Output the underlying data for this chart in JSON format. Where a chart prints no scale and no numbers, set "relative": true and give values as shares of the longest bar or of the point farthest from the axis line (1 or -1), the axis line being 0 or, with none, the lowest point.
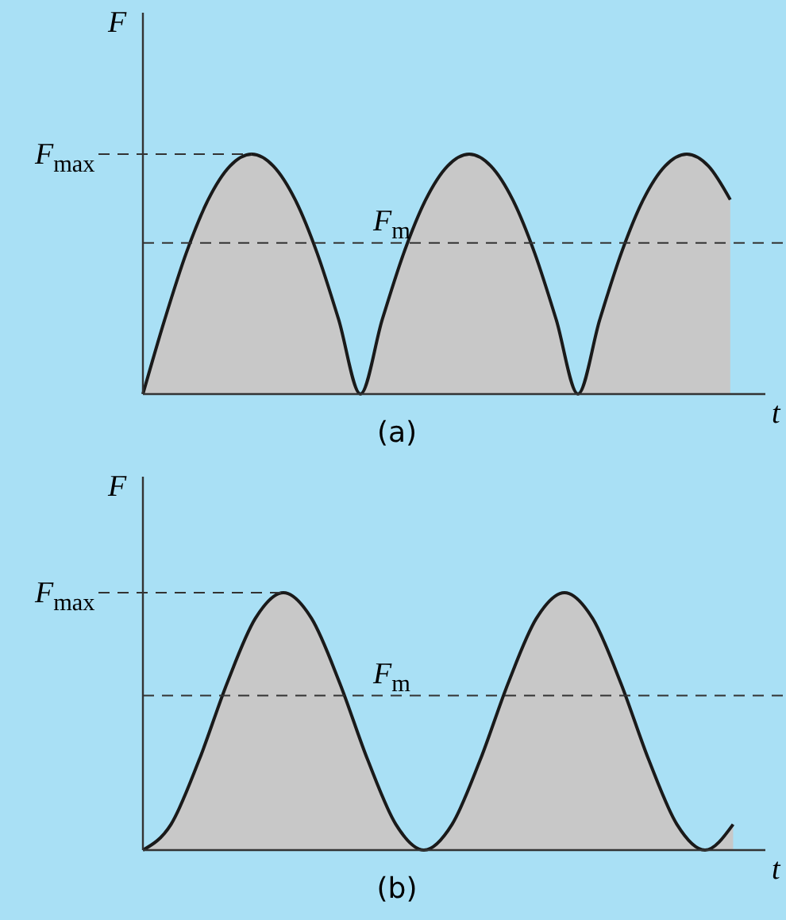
{
  "chart_data": [
    {
      "type": "area",
      "title": "(a)",
      "xlabel": "t",
      "ylabel": "F",
      "relative": true,
      "categories": [
        null,
        null,
        null,
        null,
        null,
        null,
        null,
        null,
        null,
        null,
        null,
        null,
        null,
        null,
        null,
        null,
        null,
        null,
        null,
        null,
        null,
        null,
        null,
        null,
        null,
        null,
        null,
        null
      ],
      "series": [
        {
          "color": "#c8c8c8",
          "values": [
            0,
            0.31,
            0.59,
            0.81,
            0.95,
            1,
            0.95,
            0.81,
            0.59,
            0.31,
            0,
            0.31,
            0.59,
            0.81,
            0.95,
            1,
            0.95,
            0.81,
            0.59,
            0.31,
            0,
            0.31,
            0.59,
            0.81,
            0.95,
            1,
            0.95,
            0.81
          ]
        }
      ],
      "ref_lines": [
        {
          "axis": "y",
          "value": 1,
          "label": "F$_{max}$",
          "line_style": "dashed"
        },
        {
          "axis": "y",
          "value": 0.63,
          "label": "F$_{m}$",
          "line_style": "dashed"
        }
      ]
    },
    {
      "type": "area",
      "title": "(b)",
      "xlabel": "t",
      "ylabel": "F",
      "relative": true,
      "categories": [
        null,
        null,
        null,
        null,
        null,
        null,
        null,
        null,
        null,
        null,
        null,
        null,
        null,
        null,
        null,
        null,
        null,
        null,
        null,
        null,
        null,
        null
      ],
      "series": [
        {
          "color": "#c8c8c8",
          "values": [
            0,
            0.1,
            0.35,
            0.65,
            0.9,
            1,
            0.9,
            0.65,
            0.35,
            0.1,
            0,
            0.1,
            0.35,
            0.65,
            0.9,
            1,
            0.9,
            0.65,
            0.35,
            0.1,
            0,
            0.1
          ]
        }
      ],
      "ref_lines": [
        {
          "axis": "y",
          "value": 1,
          "label": "F$_{max}$",
          "line_style": "dashed"
        },
        {
          "axis": "y",
          "value": 0.6,
          "label": "F$_{m}$",
          "line_style": "dashed"
        }
      ]
    }
  ]
}
